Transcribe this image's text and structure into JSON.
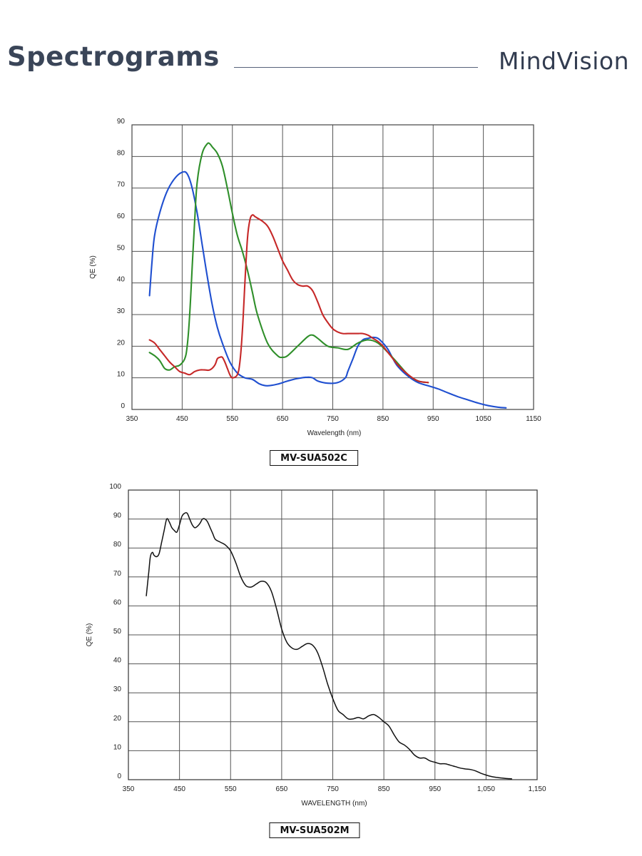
{
  "header": {
    "title": "Spectrograms",
    "brand": "MindVision"
  },
  "chart_data": [
    {
      "type": "line",
      "model": "MV-SUA502C",
      "xlabel": "Wavelength (nm)",
      "ylabel": "QE (%)",
      "xlim": [
        350,
        1150
      ],
      "ylim": [
        0,
        90
      ],
      "xticks": [
        350,
        450,
        550,
        650,
        750,
        850,
        950,
        1050,
        1150
      ],
      "xtick_labels": [
        "350",
        "450",
        "550",
        "650",
        "750",
        "850",
        "950",
        "1050",
        "1150"
      ],
      "yticks": [
        0,
        10,
        20,
        30,
        40,
        50,
        60,
        70,
        80,
        90
      ],
      "grid": true,
      "legend": "none",
      "series": [
        {
          "color": "#1f4fd0",
          "x": [
            385,
            390,
            395,
            405,
            420,
            435,
            450,
            460,
            470,
            480,
            490,
            500,
            510,
            520,
            530,
            545,
            560,
            575,
            590,
            605,
            620,
            640,
            660,
            680,
            700,
            710,
            720,
            740,
            760,
            775,
            780,
            790,
            800,
            810,
            820,
            830,
            840,
            850,
            860,
            870,
            880,
            900,
            920,
            940,
            960,
            980,
            1000,
            1020,
            1040,
            1060,
            1080,
            1095
          ],
          "y": [
            36,
            47,
            55,
            62,
            69,
            73,
            75,
            74.5,
            70,
            62,
            52,
            42,
            33,
            26,
            21,
            15,
            11.5,
            10,
            9.5,
            8,
            7.5,
            8,
            9,
            9.8,
            10.2,
            10,
            9,
            8.3,
            8.5,
            10,
            12,
            16,
            20,
            22,
            22.5,
            22.8,
            22.5,
            21,
            19,
            16,
            13.5,
            10.5,
            8.5,
            7.5,
            6.5,
            5.2,
            4,
            3,
            2,
            1.2,
            0.7,
            0.5
          ]
        },
        {
          "color": "#2f8f2a",
          "x": [
            385,
            395,
            405,
            415,
            425,
            435,
            445,
            455,
            460,
            465,
            470,
            475,
            480,
            490,
            500,
            505,
            510,
            520,
            530,
            540,
            550,
            560,
            570,
            580,
            590,
            600,
            620,
            640,
            650,
            660,
            680,
            700,
            710,
            720,
            740,
            760,
            780,
            800,
            820,
            840,
            860,
            880,
            900,
            920,
            940
          ],
          "y": [
            18,
            17,
            15.5,
            13,
            12.5,
            13.5,
            14,
            16,
            20,
            30,
            45,
            60,
            72,
            81,
            84,
            84,
            83,
            81,
            77,
            70,
            62,
            55,
            50,
            44,
            37,
            30,
            21,
            17,
            16.5,
            17,
            20,
            23,
            23.5,
            22.5,
            20,
            19.5,
            19,
            21,
            22,
            21,
            18,
            14.5,
            11,
            9,
            8.5
          ]
        },
        {
          "color": "#c62828",
          "x": [
            385,
            395,
            405,
            415,
            425,
            435,
            445,
            455,
            465,
            475,
            485,
            495,
            505,
            515,
            520,
            525,
            530,
            535,
            540,
            545,
            550,
            560,
            565,
            570,
            575,
            580,
            585,
            590,
            595,
            600,
            610,
            620,
            630,
            640,
            650,
            660,
            670,
            680,
            690,
            700,
            710,
            720,
            730,
            740,
            750,
            760,
            770,
            780,
            790,
            800,
            810,
            820,
            830,
            840,
            850,
            860,
            870,
            880,
            900,
            920,
            940
          ],
          "y": [
            22,
            21,
            19,
            17,
            15,
            13.5,
            12,
            11.5,
            11,
            12,
            12.5,
            12.5,
            12.5,
            14,
            16,
            16.5,
            16.5,
            15,
            13,
            11,
            10,
            11,
            15,
            25,
            40,
            54,
            60,
            61.5,
            61,
            60.5,
            59.5,
            58,
            55,
            51,
            47,
            44,
            41,
            39.5,
            39,
            39,
            37.5,
            34,
            30,
            27.5,
            25.5,
            24.5,
            24,
            24,
            24,
            24,
            24,
            23.5,
            22.5,
            21.5,
            20,
            18,
            16,
            14,
            11,
            9,
            8.5
          ]
        }
      ]
    },
    {
      "type": "line",
      "model": "MV-SUA502M",
      "xlabel": "WAVELENGTH (nm)",
      "ylabel": "QE (%)",
      "xlim": [
        350,
        1150
      ],
      "ylim": [
        0,
        100
      ],
      "xticks": [
        350,
        450,
        550,
        650,
        750,
        850,
        950,
        1050,
        1150
      ],
      "xtick_labels": [
        "350",
        "450",
        "550",
        "650",
        "750",
        "850",
        "950",
        "1,050",
        "1,150"
      ],
      "yticks": [
        0,
        10,
        20,
        30,
        40,
        50,
        60,
        70,
        80,
        90,
        100
      ],
      "grid": true,
      "legend": "none",
      "series": [
        {
          "color": "#111111",
          "x": [
            385,
            390,
            393,
            397,
            400,
            405,
            410,
            415,
            420,
            425,
            430,
            435,
            440,
            445,
            450,
            455,
            460,
            465,
            470,
            475,
            480,
            485,
            490,
            495,
            500,
            505,
            510,
            515,
            520,
            530,
            540,
            550,
            560,
            570,
            580,
            590,
            600,
            610,
            620,
            630,
            640,
            650,
            660,
            670,
            680,
            690,
            700,
            710,
            720,
            730,
            740,
            750,
            760,
            770,
            780,
            790,
            800,
            810,
            820,
            830,
            840,
            850,
            860,
            870,
            880,
            890,
            900,
            910,
            920,
            930,
            940,
            950,
            960,
            970,
            980,
            990,
            1000,
            1010,
            1020,
            1030,
            1040,
            1050,
            1060,
            1070,
            1080,
            1090,
            1100
          ],
          "y": [
            63.5,
            72,
            77,
            78.5,
            77.5,
            77,
            78,
            82,
            86,
            90,
            89,
            87,
            86,
            85.5,
            88,
            91,
            92,
            92,
            90,
            88,
            87,
            87.5,
            88.5,
            90,
            90,
            89,
            87,
            85,
            83,
            82,
            81,
            79,
            75,
            70,
            67,
            66.5,
            67.5,
            68.5,
            68,
            65,
            59,
            52,
            47.5,
            45.5,
            45,
            46,
            47,
            46.5,
            44,
            39,
            33,
            28,
            24,
            22.5,
            21,
            21,
            21.5,
            21,
            22,
            22.5,
            21.5,
            20,
            18.5,
            15.5,
            13,
            12,
            10.5,
            8.5,
            7.5,
            7.5,
            6.5,
            6,
            5.5,
            5.5,
            5,
            4.5,
            4,
            3.7,
            3.5,
            3,
            2.2,
            1.6,
            1.1,
            0.8,
            0.6,
            0.4,
            0.3
          ]
        }
      ]
    }
  ]
}
